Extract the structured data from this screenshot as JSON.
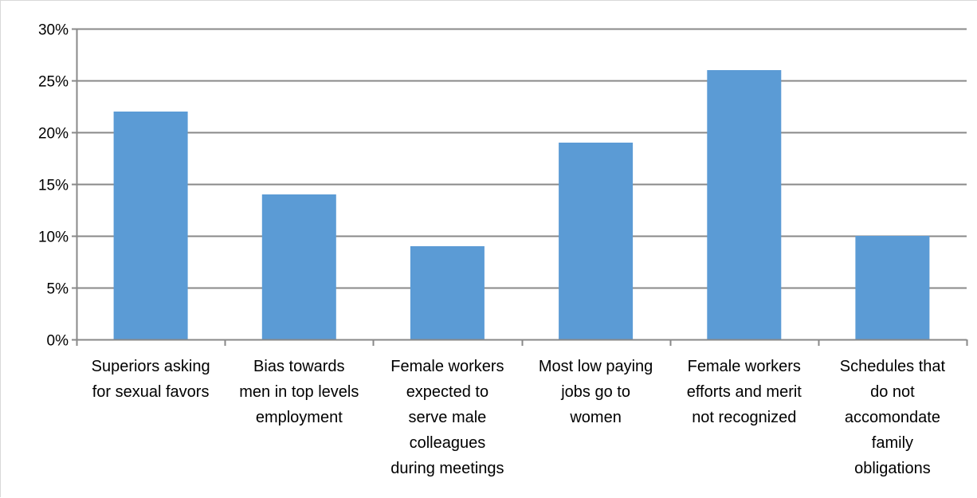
{
  "chart_data": {
    "type": "bar",
    "title": "",
    "xlabel": "",
    "ylabel": "",
    "ylim": [
      0,
      0.3
    ],
    "y_ticks": [
      0,
      0.05,
      0.1,
      0.15,
      0.2,
      0.25,
      0.3
    ],
    "y_tick_labels": [
      "0%",
      "5%",
      "10%",
      "15%",
      "20%",
      "25%",
      "30%"
    ],
    "grid": true,
    "legend": "none",
    "colors": {
      "bar": "#5b9bd5",
      "grid": "#898989",
      "axis": "#898989"
    },
    "categories": [
      [
        "Superiors asking",
        "for sexual favors"
      ],
      [
        "Bias towards",
        "men in top levels",
        "employment"
      ],
      [
        "Female workers",
        "expected to",
        "serve male",
        "colleagues",
        "during meetings"
      ],
      [
        "Most low paying",
        "jobs go to",
        "women"
      ],
      [
        "Female workers",
        "efforts and merit",
        "not recognized"
      ],
      [
        "Schedules that",
        "do not",
        "accomondate",
        "family",
        "obligations"
      ]
    ],
    "values": [
      0.22,
      0.14,
      0.09,
      0.19,
      0.26,
      0.1
    ]
  }
}
